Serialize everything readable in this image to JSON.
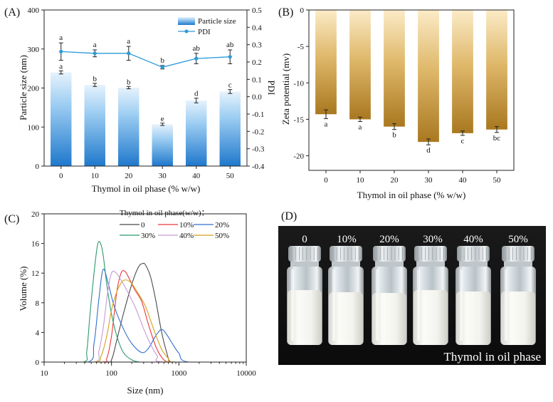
{
  "chart_data": [
    {
      "panel": "(A)",
      "type": "bar",
      "categories": [
        "0",
        "10",
        "20",
        "30",
        "40",
        "50"
      ],
      "series": [
        {
          "name": "Particle size",
          "type": "bar",
          "axis": "left",
          "values": [
            240,
            208,
            201,
            107,
            168,
            191
          ],
          "errors": [
            4,
            4,
            3,
            3,
            6,
            5
          ],
          "letters": [
            "a",
            "b",
            "b",
            "e",
            "d",
            "c"
          ]
        },
        {
          "name": "PDI",
          "type": "line",
          "axis": "right",
          "values": [
            0.26,
            0.25,
            0.25,
            0.17,
            0.22,
            0.23
          ],
          "errors": [
            0.05,
            0.02,
            0.04,
            0.01,
            0.03,
            0.04
          ],
          "letters": [
            "a",
            "a",
            "a",
            "b",
            "ab",
            "ab"
          ]
        }
      ],
      "xlabel": "Thymol in oil phase (% w/w)",
      "ylabel": "Particle size (nm)",
      "y2label": "PDI",
      "ylim": [
        0,
        400
      ],
      "yticks": [
        "0",
        "100",
        "200",
        "300",
        "400"
      ],
      "y2lim": [
        -0.4,
        0.5
      ],
      "y2ticks": [
        "-0.4",
        "-0.3",
        "-0.2",
        "-0.1",
        "0.0",
        "0.1",
        "0.2",
        "0.3",
        "0.4",
        "0.5"
      ],
      "legend": [
        "Particle size",
        "PDI"
      ],
      "legend_position": "top-right"
    },
    {
      "panel": "(B)",
      "type": "bar",
      "categories": [
        "0",
        "10",
        "20",
        "30",
        "40",
        "50"
      ],
      "values": [
        -14.3,
        -15.0,
        -16.0,
        -18.1,
        -16.9,
        -16.4
      ],
      "errors": [
        0.6,
        0.3,
        0.4,
        0.4,
        0.3,
        0.4
      ],
      "letters": [
        "a",
        "a",
        "b",
        "d",
        "c",
        "bc"
      ],
      "xlabel": "Thymol in oil phase (% w/w)",
      "ylabel": "Zeta potential (mv)",
      "ylim": [
        -22,
        0
      ],
      "yticks": [
        "0",
        "-5",
        "-10",
        "-15",
        "-20"
      ]
    },
    {
      "panel": "(C)",
      "type": "line",
      "xscale": "log",
      "xlabel": "Size (nm)",
      "ylabel": "Volume (%)",
      "xlim": [
        10,
        10000
      ],
      "xticks": [
        "10",
        "100",
        "1000",
        "10000"
      ],
      "ylim": [
        0,
        20
      ],
      "yticks": [
        "0",
        "4",
        "8",
        "12",
        "16",
        "20"
      ],
      "legend_title": "Thymol in oil phase(w/w)：",
      "series": [
        {
          "name": "0",
          "color": "#4a4a4a",
          "x": [
            10,
            80,
            100,
            120,
            150,
            200,
            250,
            290,
            320,
            380,
            450,
            550,
            650,
            750,
            1000,
            10000
          ],
          "y": [
            0,
            0,
            0.3,
            3,
            6.5,
            10.5,
            12.8,
            13.3,
            13.1,
            11.5,
            8.5,
            4.2,
            1.5,
            0,
            0,
            0
          ]
        },
        {
          "name": "10%",
          "color": "#e8393b",
          "x": [
            10,
            70,
            85,
            100,
            120,
            140,
            160,
            180,
            220,
            280,
            350,
            450,
            550,
            680,
            1000,
            10000
          ],
          "y": [
            0,
            0,
            0.5,
            3.5,
            9.5,
            12.1,
            12.2,
            11.4,
            9.8,
            8.2,
            5.2,
            2.2,
            0.7,
            0,
            0,
            0
          ]
        },
        {
          "name": "20%",
          "color": "#2f6fce",
          "x": [
            10,
            45,
            55,
            65,
            75,
            90,
            110,
            150,
            200,
            280,
            350,
            450,
            550,
            650,
            800,
            1000,
            1400,
            10000
          ],
          "y": [
            0,
            0,
            2.5,
            8.5,
            12.5,
            10.5,
            7.5,
            4.5,
            2.5,
            1.3,
            1.8,
            3.5,
            4.4,
            3.8,
            2.5,
            1.2,
            0,
            0
          ]
        },
        {
          "name": "30%",
          "color": "#2a9a6a",
          "x": [
            10,
            38,
            43,
            48,
            55,
            62,
            68,
            75,
            85,
            100,
            120,
            150,
            200,
            260,
            330,
            10000
          ],
          "y": [
            0,
            0,
            1.5,
            6.5,
            12,
            15.8,
            16.1,
            14.5,
            10.5,
            6.5,
            3.5,
            1.3,
            0.3,
            0,
            0,
            0
          ]
        },
        {
          "name": "40%",
          "color": "#c69ad8",
          "x": [
            10,
            55,
            65,
            75,
            88,
            100,
            115,
            140,
            180,
            230,
            300,
            380,
            480,
            600,
            10000
          ],
          "y": [
            0,
            0,
            1.5,
            4.5,
            9.5,
            12,
            12.1,
            11,
            9.2,
            7.2,
            4.5,
            2.4,
            0.8,
            0,
            0
          ]
        },
        {
          "name": "50%",
          "color": "#d4a11c",
          "x": [
            10,
            55,
            70,
            85,
            100,
            120,
            150,
            190,
            240,
            320,
            420,
            550,
            700,
            900,
            10000
          ],
          "y": [
            0,
            0,
            0.8,
            3.5,
            7,
            9.5,
            11,
            10.8,
            9.5,
            7.5,
            4.5,
            1.8,
            0.5,
            0,
            0
          ]
        }
      ]
    }
  ],
  "photo": {
    "panel": "(D)",
    "labels": [
      "0",
      "10%",
      "20%",
      "30%",
      "40%",
      "50%"
    ],
    "caption": "Thymol in oil phase"
  }
}
